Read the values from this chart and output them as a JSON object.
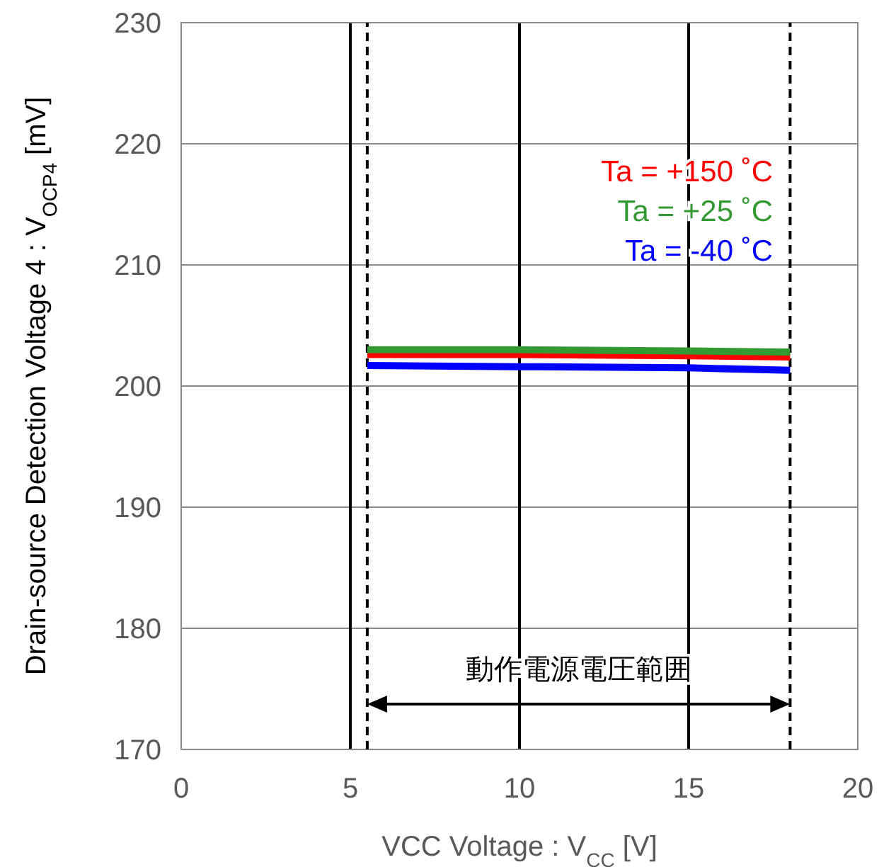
{
  "chart_data": {
    "type": "line",
    "xlabel": "VCC Voltage : V$_{CC}$ [V]",
    "ylabel": "Drain-source Detection Voltage 4 : V$_{OCP4}$ [mV]",
    "x": [
      5.5,
      10,
      15,
      18
    ],
    "series": [
      {
        "name": "Ta = +150 ˚C",
        "color": "#ff0000",
        "values": [
          202.6,
          202.6,
          202.5,
          202.4
        ]
      },
      {
        "name": "Ta = +25 ˚C",
        "color": "#339933",
        "values": [
          203.0,
          203.0,
          202.9,
          202.8
        ]
      },
      {
        "name": "Ta = -40 ˚C",
        "color": "#0000ff",
        "values": [
          201.7,
          201.6,
          201.5,
          201.3
        ]
      }
    ],
    "xlim": [
      0,
      20
    ],
    "xticks": [
      0,
      5,
      10,
      15,
      20
    ],
    "ylim": [
      170,
      230
    ],
    "yticks": [
      170,
      180,
      190,
      200,
      210,
      220,
      230
    ],
    "grid": true,
    "legend": "top right",
    "marker": "none",
    "line_style": "solid",
    "ref_lines": [
      {
        "axis": "x",
        "value": 5.5,
        "line_style": "dashed",
        "color": "#000000"
      },
      {
        "axis": "x",
        "value": 18,
        "line_style": "dashed",
        "color": "#000000"
      }
    ],
    "annotations": [
      "動作電源電圧範囲"
    ]
  }
}
